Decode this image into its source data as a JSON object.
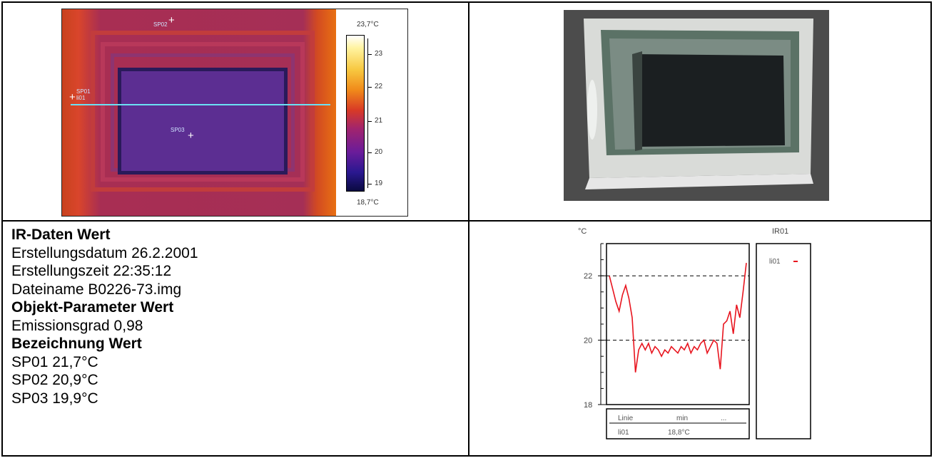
{
  "thermogram": {
    "max_label": "23,7°C",
    "min_label": "18,7°C",
    "scale_ticks": [
      "23",
      "22",
      "21",
      "20",
      "19"
    ],
    "spots": [
      {
        "id": "SP01",
        "label": "SP01"
      },
      {
        "id": "SP02",
        "label": "SP02"
      },
      {
        "id": "SP03",
        "label": "SP03"
      }
    ],
    "line_label": "li01"
  },
  "info": {
    "ir_heading": "IR-Daten Wert",
    "date": "Erstellungsdatum 26.2.2001",
    "time": "Erstellungszeit 22:35:12",
    "file": "Dateiname B0226-73.img",
    "obj_heading": "Objekt-Parameter Wert",
    "emission": "Emissionsgrad 0,98",
    "label_heading": "Bezeichnung Wert",
    "sp01": "SP01 21,7°C",
    "sp02": "SP02 20,9°C",
    "sp03": "SP03 19,9°C"
  },
  "colors": {
    "profile_line": "#e8141e",
    "cursor": "#6be1f4"
  },
  "chart_data": {
    "type": "line",
    "title": "IR01",
    "ylabel": "°C",
    "ylim": [
      18,
      23
    ],
    "y_ticks": [
      "22",
      "20",
      "18"
    ],
    "reference_lines": [
      22,
      20
    ],
    "legend": [
      {
        "name": "li01"
      }
    ],
    "table_headers": [
      "Linie",
      "min",
      "..."
    ],
    "table_row": [
      "li01",
      "18,8°C"
    ],
    "series": [
      {
        "name": "li01",
        "values": [
          22.0,
          21.6,
          21.2,
          20.9,
          21.4,
          21.7,
          21.3,
          20.7,
          19.0,
          19.7,
          19.9,
          19.7,
          19.9,
          19.6,
          19.8,
          19.7,
          19.5,
          19.7,
          19.6,
          19.8,
          19.7,
          19.6,
          19.8,
          19.7,
          19.9,
          19.6,
          19.8,
          19.7,
          19.9,
          20.0,
          19.6,
          19.8,
          20.0,
          19.9,
          19.1,
          20.5,
          20.6,
          20.9,
          20.2,
          21.1,
          20.7,
          21.5,
          22.4
        ]
      }
    ]
  }
}
